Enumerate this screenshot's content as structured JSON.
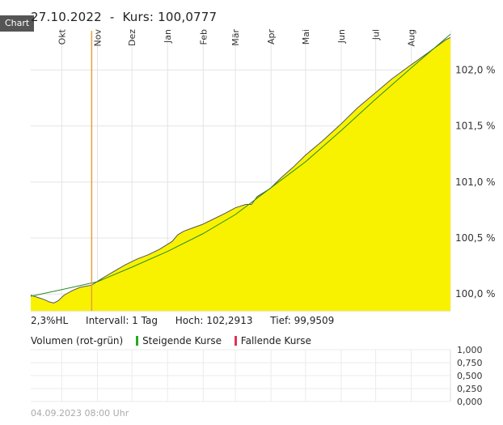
{
  "tab_label": "Chart",
  "header": {
    "date": "27.10.2022",
    "separator": "-",
    "price_text": "Kurs: 100,0777"
  },
  "info": {
    "range": "2,3%HL",
    "interval": "Intervall: 1 Tag",
    "high": "Hoch: 102,2913",
    "low": "Tief: 99,9509"
  },
  "volume": {
    "title": "Volumen (rot-grün)",
    "rising_label": "Steigende Kurse",
    "rising_color": "#22aa22",
    "falling_label": "Fallende Kurse",
    "falling_color": "#dd3355",
    "ticks": [
      "1,000",
      "0,750",
      "0,500",
      "0,250",
      "0,000"
    ]
  },
  "timestamp": "04.09.2023 08:00 Uhr",
  "colors": {
    "area_fill": "#f8f200",
    "price_line": "#555555",
    "trend_line": "#2a8a2a",
    "marker_line": "#e8a040"
  },
  "chart_data": {
    "type": "area",
    "y_axis_position": "right",
    "grid": true,
    "ylim": [
      99.85,
      102.35
    ],
    "y_ticks": [
      100.0,
      100.5,
      101.0,
      101.5,
      102.0
    ],
    "y_tick_labels": [
      "100,0 %",
      "100,5 %",
      "101,0 %",
      "101,5 %",
      "102,0 %"
    ],
    "x_start": "2022-09-04",
    "x_end": "2023-09-04",
    "x_labels": [
      {
        "label": "Okt",
        "date": "2022-10-01"
      },
      {
        "label": "Nov",
        "date": "2022-11-01"
      },
      {
        "label": "Dez",
        "date": "2022-12-01"
      },
      {
        "label": "Jan",
        "date": "2023-01-01"
      },
      {
        "label": "Feb",
        "date": "2023-02-01"
      },
      {
        "label": "Mär",
        "date": "2023-03-01"
      },
      {
        "label": "Apr",
        "date": "2023-04-01"
      },
      {
        "label": "Mai",
        "date": "2023-05-01"
      },
      {
        "label": "Jun",
        "date": "2023-06-01"
      },
      {
        "label": "Jul",
        "date": "2023-07-01"
      },
      {
        "label": "Aug",
        "date": "2023-08-01"
      }
    ],
    "marker_date": "2022-10-27",
    "series": [
      {
        "role": "price",
        "x": [
          "2022-09-04",
          "2022-09-10",
          "2022-09-16",
          "2022-09-20",
          "2022-09-24",
          "2022-09-28",
          "2022-10-03",
          "2022-10-10",
          "2022-10-17",
          "2022-10-27",
          "2022-11-05",
          "2022-11-15",
          "2022-11-25",
          "2022-12-05",
          "2022-12-15",
          "2022-12-25",
          "2023-01-05",
          "2023-01-10",
          "2023-01-15",
          "2023-01-20",
          "2023-01-31",
          "2023-02-10",
          "2023-02-20",
          "2023-03-01",
          "2023-03-10",
          "2023-03-15",
          "2023-03-20",
          "2023-03-31",
          "2023-04-10",
          "2023-04-20",
          "2023-05-01",
          "2023-05-15",
          "2023-05-31",
          "2023-06-15",
          "2023-06-30",
          "2023-07-15",
          "2023-07-31",
          "2023-08-15",
          "2023-08-31",
          "2023-09-04"
        ],
        "y": [
          99.99,
          99.97,
          99.95,
          99.93,
          99.92,
          99.94,
          99.99,
          100.03,
          100.06,
          100.08,
          100.14,
          100.2,
          100.26,
          100.31,
          100.35,
          100.4,
          100.47,
          100.53,
          100.56,
          100.58,
          100.62,
          100.67,
          100.72,
          100.77,
          100.8,
          100.8,
          100.87,
          100.94,
          101.04,
          101.13,
          101.24,
          101.36,
          101.51,
          101.66,
          101.79,
          101.92,
          102.04,
          102.15,
          102.27,
          102.29
        ]
      },
      {
        "role": "trend",
        "x": [
          "2022-09-04",
          "2022-10-01",
          "2022-11-01",
          "2022-12-01",
          "2023-01-01",
          "2023-02-01",
          "2023-03-01",
          "2023-04-01",
          "2023-05-01",
          "2023-06-01",
          "2023-07-01",
          "2023-08-01",
          "2023-09-04"
        ],
        "y": [
          99.98,
          100.04,
          100.11,
          100.24,
          100.38,
          100.54,
          100.71,
          100.95,
          101.18,
          101.46,
          101.74,
          102.02,
          102.32
        ]
      }
    ]
  }
}
